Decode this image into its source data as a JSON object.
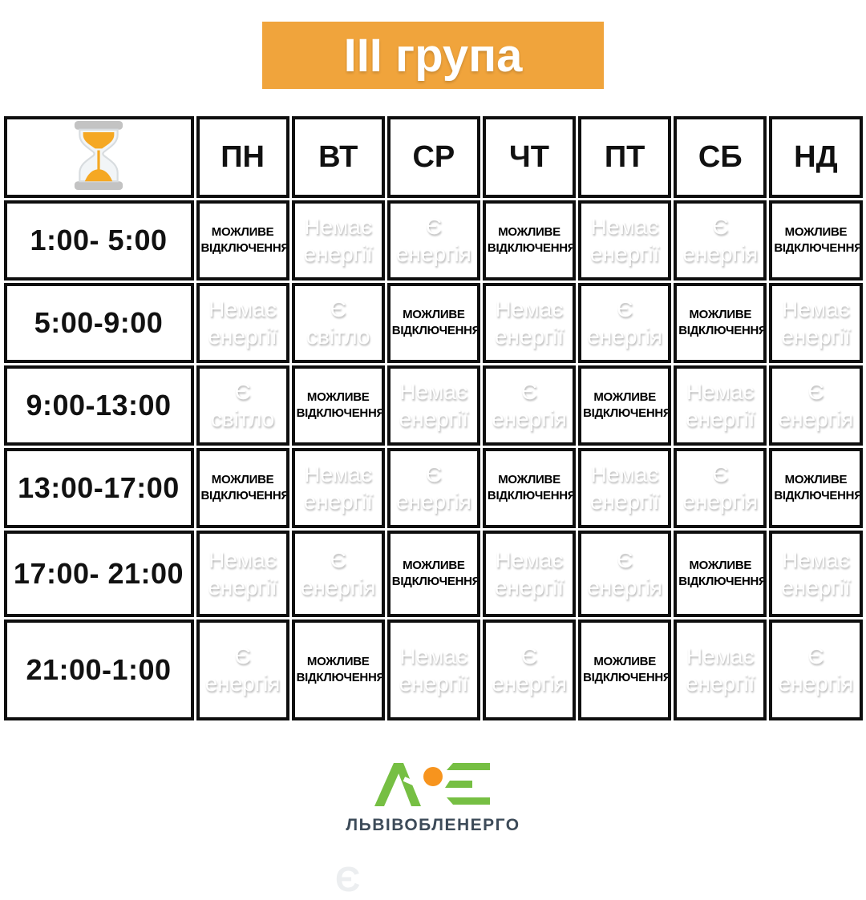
{
  "chart_data": {
    "type": "table",
    "title": "ІІІ група",
    "corner_icon": "hourglass-icon",
    "day_columns": [
      "ПН",
      "ВТ",
      "СР",
      "ЧТ",
      "ПТ",
      "СБ",
      "НД"
    ],
    "time_rows": [
      "1:00- 5:00",
      "5:00-9:00",
      "9:00-13:00",
      "13:00-17:00",
      "17:00- 21:00",
      "21:00-1:00"
    ],
    "cells": [
      [
        "МОЖЛИВЕ ВІДКЛЮЧЕННЯ",
        "Немає енергії",
        "Є енергія",
        "МОЖЛИВЕ ВІДКЛЮЧЕННЯ",
        "Немає енергії",
        "Є енергія",
        "МОЖЛИВЕ ВІДКЛЮЧЕННЯ"
      ],
      [
        "Немає енергії",
        "Є світло",
        "МОЖЛИВЕ ВІДКЛЮЧЕННЯ",
        "Немає енергії",
        "Є енергія",
        "МОЖЛИВЕ ВІДКЛЮЧЕННЯ",
        "Немає енергії"
      ],
      [
        "Є світло",
        "МОЖЛИВЕ ВІДКЛЮЧЕННЯ",
        "Немає енергії",
        "Є енергія",
        "МОЖЛИВЕ ВІДКЛЮЧЕННЯ",
        "Немає енергії",
        "Є енергія"
      ],
      [
        "МОЖЛИВЕ ВІДКЛЮЧЕННЯ",
        "Немає енергії",
        "Є енергія",
        "МОЖЛИВЕ ВІДКЛЮЧЕННЯ",
        "Немає енергії",
        "Є енергія",
        "МОЖЛИВЕ ВІДКЛЮЧЕННЯ"
      ],
      [
        "Немає енергії",
        "Є енергія",
        "МОЖЛИВЕ ВІДКЛЮЧЕННЯ",
        "Немає енергії",
        "Є енергія",
        "МОЖЛИВЕ ВІДКЛЮЧЕННЯ",
        "Немає енергії"
      ],
      [
        "Є енергія",
        "МОЖЛИВЕ ВІДКЛЮЧЕННЯ",
        "Немає енергії",
        "Є енергія",
        "МОЖЛИВЕ ВІДКЛЮЧЕННЯ",
        "Немає енергії",
        "Є енергія"
      ]
    ],
    "cell_states": {
      "МОЖЛИВЕ ВІДКЛЮЧЕННЯ": "possible-outage",
      "Немає енергії": "no-power",
      "Є енергія": "power-on",
      "Є світло": "power-on"
    }
  },
  "colors": {
    "banner_bg": "#F0A43C",
    "no_power_bg": "#F57C22",
    "power_on_bg": "#8CC63F",
    "grid_border": "#0E0E0E",
    "logo_green": "#76BF43",
    "logo_orange": "#F7941E",
    "company_text": "#3D4B59"
  },
  "footer": {
    "company": "ЛЬВІВОБЛЕНЕРГО",
    "watermark": "Є"
  }
}
